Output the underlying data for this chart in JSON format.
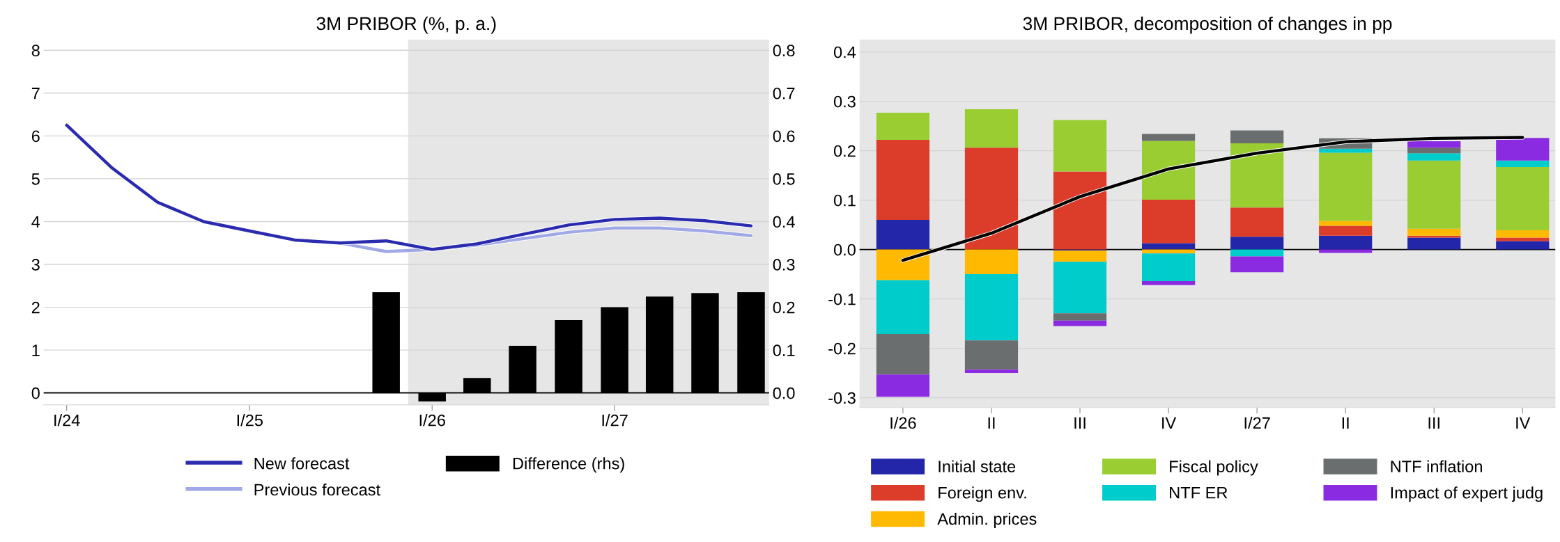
{
  "chart_data": [
    {
      "type": "line",
      "title": "3M PRIBOR (%, p. a.)",
      "x": [
        "2024-01",
        "2024-04",
        "2024-07",
        "2024-10",
        "2025-01",
        "2025-04",
        "2025-07",
        "2025-10",
        "2026-01",
        "2026-04",
        "2026-07",
        "2026-10",
        "2027-01",
        "2027-04",
        "2027-07",
        "2027-10"
      ],
      "xlim": [
        "2023-11-16",
        "2027-11-06"
      ],
      "xticks": [
        {
          "value": "2024-01",
          "label": "I/24"
        },
        {
          "value": "2025-01",
          "label": "I/25"
        },
        {
          "value": "2026-01",
          "label": "I/26"
        },
        {
          "value": "2027-01",
          "label": "I/27"
        }
      ],
      "series": [
        {
          "name": "New forecast",
          "color": "#2b2bb0",
          "values": [
            6.25,
            5.25,
            4.45,
            4.0,
            3.78,
            3.57,
            3.5,
            3.55,
            3.35,
            3.48,
            3.7,
            3.92,
            4.05,
            4.08,
            4.02,
            3.9
          ]
        },
        {
          "name": "Previous forecast",
          "color": "#a0a8e6",
          "values": [
            6.25,
            5.25,
            4.45,
            4.0,
            3.78,
            3.57,
            3.5,
            3.3,
            3.35,
            3.45,
            3.6,
            3.75,
            3.85,
            3.85,
            3.78,
            3.67
          ]
        },
        {
          "name": "Difference (rhs)",
          "type": "bar",
          "axis": "y2",
          "color": "#000000",
          "values": [
            0,
            0,
            0,
            0,
            0,
            0,
            0,
            0.235,
            -0.02,
            0.035,
            0.11,
            0.17,
            0.2,
            0.225,
            0.233,
            0.235
          ]
        }
      ],
      "ylim": [
        -0.28,
        8.25
      ],
      "yticks": [
        0,
        1,
        2,
        3,
        4,
        5,
        6,
        7,
        8
      ],
      "y2lim": [
        -0.028,
        0.825
      ],
      "y2ticks": [
        {
          "value": 0,
          "label": "0.0"
        },
        0.1,
        0.2,
        0.3,
        0.4,
        0.5,
        0.6,
        0.7,
        0.8
      ],
      "bands": [
        {
          "axis": "x",
          "from": "2025-11-14",
          "to": "2027-11-06",
          "color": "#e6e6e6"
        }
      ],
      "ref_lines": [
        {
          "axis": "y",
          "value": 0,
          "color": "#000000"
        }
      ],
      "grid": "y",
      "legend": "bottom"
    },
    {
      "type": "bar",
      "title": "3M PRIBOR, decomposition of changes in pp",
      "stacked": true,
      "categories": [
        "I/26",
        "II",
        "III",
        "IV",
        "I/27",
        "II",
        "III",
        "IV"
      ],
      "series": [
        {
          "name": "Initial state",
          "color": "#2326a8",
          "values": [
            0.06,
            0,
            -0.002,
            0.013,
            0.026,
            0.028,
            0.024,
            0.017
          ]
        },
        {
          "name": "Foreign env.",
          "color": "#dc3d2a",
          "values": [
            0.162,
            0.206,
            0.158,
            0.088,
            0.059,
            0.02,
            0.004,
            0.007
          ]
        },
        {
          "name": "Admin. prices",
          "color": "#ffb900",
          "values": [
            -0.062,
            -0.05,
            -0.023,
            -0.008,
            0,
            0.01,
            0.014,
            0.015
          ]
        },
        {
          "name": "Fiscal policy",
          "color": "#9acd32",
          "values": [
            0.055,
            0.078,
            0.104,
            0.119,
            0.13,
            0.138,
            0.138,
            0.128
          ]
        },
        {
          "name": "NTF ER",
          "color": "#00cccc",
          "values": [
            -0.109,
            -0.134,
            -0.104,
            -0.056,
            -0.014,
            0.008,
            0.015,
            0.013
          ]
        },
        {
          "name": "NTF inflation",
          "color": "#6b6e6e",
          "values": [
            -0.082,
            -0.059,
            -0.015,
            0.014,
            0.026,
            0.021,
            0.011,
            0
          ]
        },
        {
          "name": "Impact of expert judg",
          "color": "#8a2be2",
          "values": [
            -0.045,
            -0.007,
            -0.011,
            -0.008,
            -0.032,
            -0.007,
            0.013,
            0.046
          ]
        },
        {
          "type": "line",
          "color": "#000000",
          "values": [
            -0.022,
            0.033,
            0.107,
            0.163,
            0.195,
            0.218,
            0.225,
            0.227
          ]
        }
      ],
      "ylim": [
        -0.32,
        0.425
      ],
      "yticks": [
        -0.3,
        -0.2,
        -0.1,
        {
          "value": 0,
          "label": "0.0"
        },
        0.1,
        0.2,
        0.3,
        0.4
      ],
      "ref_lines": [
        {
          "axis": "y",
          "value": 0,
          "color": "#000000"
        }
      ],
      "grid": "y",
      "legend": "bottom"
    }
  ]
}
